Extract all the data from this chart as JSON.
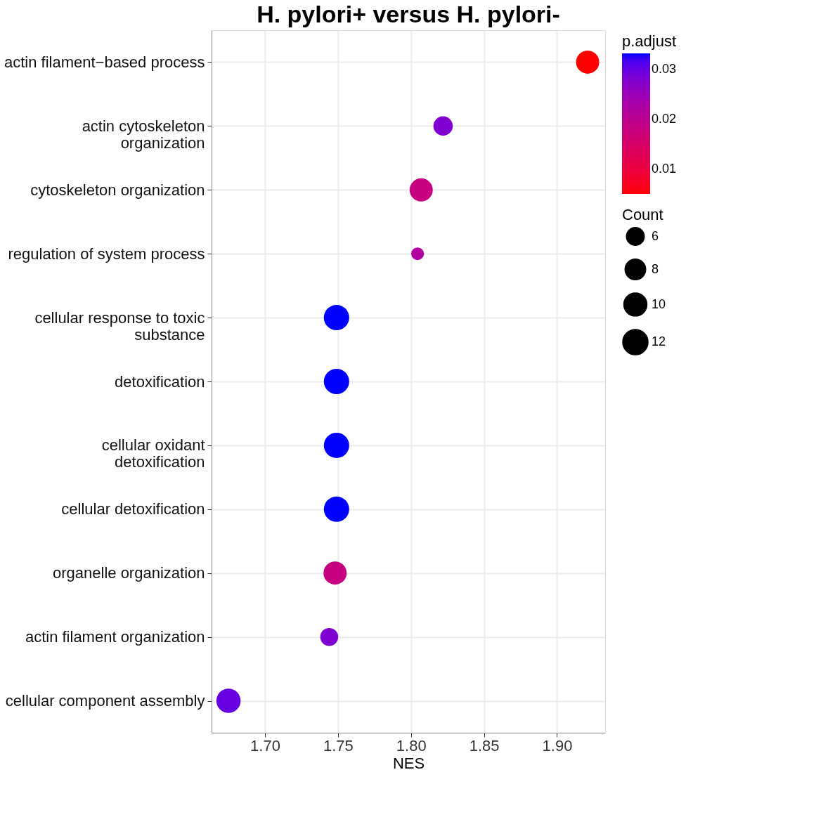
{
  "chart_data": {
    "type": "bubble",
    "title": "H. pylori+ versus H. pylori-",
    "xlabel": "NES",
    "categories": [
      "actin filament−based process",
      "actin cytoskeleton organization",
      "cytoskeleton organization",
      "regulation of system process",
      "cellular response to toxic substance",
      "detoxification",
      "cellular oxidant detoxification",
      "cellular detoxification",
      "organelle organization",
      "actin filament organization",
      "cellular component assembly"
    ],
    "values": [
      1.921,
      1.822,
      1.807,
      1.8045,
      1.749,
      1.749,
      1.749,
      1.749,
      1.748,
      1.744,
      1.675
    ],
    "sizes": [
      10,
      7,
      10,
      3,
      12,
      12,
      12,
      12,
      10,
      6,
      11
    ],
    "cvalues": [
      0.005,
      0.028,
      0.018,
      0.022,
      0.0333,
      0.0333,
      0.0333,
      0.0333,
      0.018,
      0.028,
      0.03
    ],
    "size_legend": [
      6,
      8,
      10,
      12
    ],
    "legend_title": "Count",
    "clabel": "p.adjust",
    "clim": [
      0.005,
      0.0333
    ],
    "cticks": [
      0.01,
      0.02,
      0.03
    ],
    "xlim": [
      1.6634,
      1.933
    ],
    "xticks": [
      {
        "value": 1.7,
        "label": "1.70"
      },
      1.75,
      {
        "value": 1.8,
        "label": "1.80"
      },
      1.85,
      {
        "value": 1.9,
        "label": "1.90"
      }
    ],
    "orientation": "horizontal",
    "grid": true,
    "marker": "circle"
  }
}
